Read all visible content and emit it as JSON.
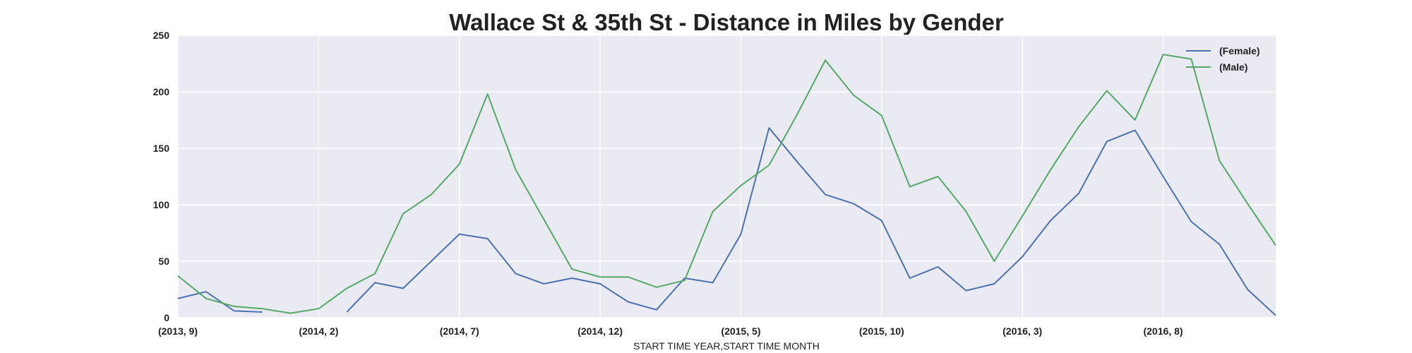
{
  "chart_data": {
    "type": "line",
    "title": "Wallace St & 35th St - Distance in Miles by Gender",
    "xlabel": "START TIME YEAR,START TIME MONTH",
    "ylabel": "",
    "ylim": [
      0,
      250
    ],
    "yticks": [
      0,
      50,
      100,
      150,
      200,
      250
    ],
    "grid": true,
    "legend": "top-right",
    "x": [
      "(2013, 9)",
      "(2013, 10)",
      "(2013, 11)",
      "(2013, 12)",
      "(2014, 1)",
      "(2014, 2)",
      "(2014, 3)",
      "(2014, 4)",
      "(2014, 5)",
      "(2014, 6)",
      "(2014, 7)",
      "(2014, 8)",
      "(2014, 9)",
      "(2014, 10)",
      "(2014, 11)",
      "(2014, 12)",
      "(2015, 1)",
      "(2015, 2)",
      "(2015, 3)",
      "(2015, 4)",
      "(2015, 5)",
      "(2015, 6)",
      "(2015, 7)",
      "(2015, 8)",
      "(2015, 9)",
      "(2015, 10)",
      "(2015, 11)",
      "(2015, 12)",
      "(2016, 1)",
      "(2016, 2)",
      "(2016, 3)",
      "(2016, 4)",
      "(2016, 5)",
      "(2016, 6)",
      "(2016, 7)",
      "(2016, 8)",
      "(2016, 9)",
      "(2016, 10)",
      "(2016, 11)",
      "(2016, 12)"
    ],
    "xticks": [
      "(2013, 9)",
      "(2014, 2)",
      "(2014, 7)",
      "(2014, 12)",
      "(2015, 5)",
      "(2015, 10)",
      "(2016, 3)",
      "(2016, 8)"
    ],
    "series": [
      {
        "name": "(Female)",
        "color": "#4c72b0",
        "values": [
          17,
          23,
          6,
          5,
          null,
          null,
          5,
          31,
          26,
          50,
          74,
          70,
          39,
          30,
          35,
          30,
          14,
          7,
          35,
          31,
          74,
          168,
          138,
          109,
          101,
          86,
          35,
          45,
          24,
          30,
          54,
          86,
          110,
          156,
          166,
          125,
          85,
          65,
          25,
          2
        ]
      },
      {
        "name": "(Male)",
        "color": "#55a868",
        "values": [
          37,
          17,
          10,
          8,
          4,
          8,
          26,
          39,
          92,
          109,
          136,
          198,
          131,
          87,
          43,
          36,
          36,
          27,
          33,
          94,
          117,
          135,
          180,
          228,
          197,
          179,
          116,
          125,
          94,
          50,
          90,
          131,
          169,
          201,
          175,
          233,
          229,
          139,
          101,
          64
        ]
      }
    ]
  }
}
